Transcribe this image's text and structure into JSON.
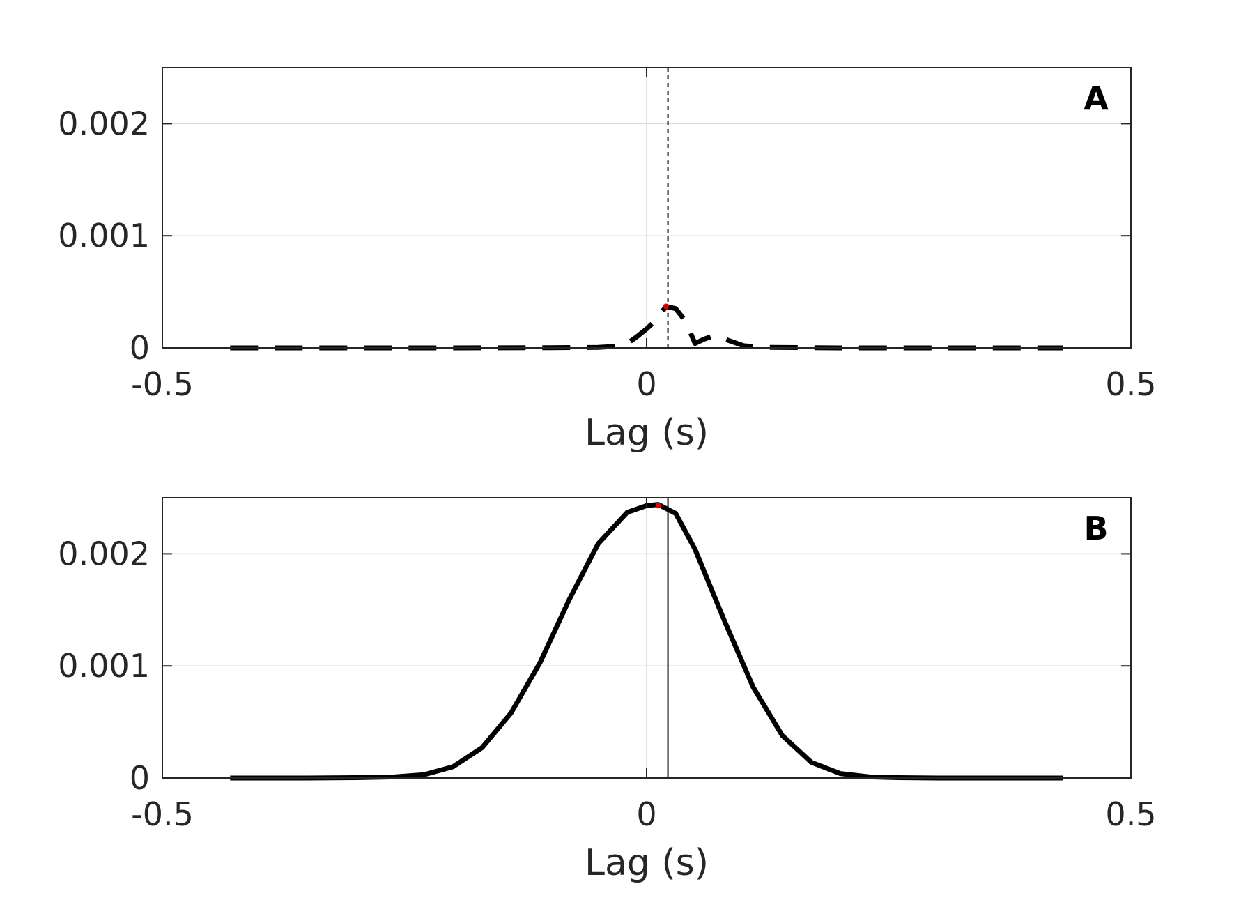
{
  "chart_data": [
    {
      "type": "line",
      "panel_label": "A",
      "xlabel": "Lag (s)",
      "ylabel": "",
      "xlim": [
        -0.5,
        0.5
      ],
      "ylim": [
        0,
        0.0025
      ],
      "x_ticks": [
        -0.5,
        0,
        0.5
      ],
      "x_tick_labels": [
        "-0.5",
        "0",
        "0.5"
      ],
      "y_ticks": [
        0,
        0.001,
        0.002
      ],
      "y_tick_labels": [
        "0",
        "0.001",
        "0.002"
      ],
      "grid": true,
      "line_style": "dashed",
      "line_color": "#000000",
      "reference_lines": [
        {
          "x": 0,
          "style": "solid",
          "color": "#d9d9d9"
        },
        {
          "x": 0.022,
          "style": "dotted",
          "color": "#000000"
        }
      ],
      "peak_marker": {
        "x": 0.02,
        "y": 0.00037,
        "color": "#e00000"
      },
      "series": [
        {
          "x": [
            -0.43,
            -0.3,
            -0.2,
            -0.1,
            -0.05,
            -0.03,
            -0.02,
            -0.01,
            0.0,
            0.01,
            0.02,
            0.03,
            0.04,
            0.05,
            0.06,
            0.07,
            0.08,
            0.1,
            0.12,
            0.2,
            0.3,
            0.43
          ],
          "values": [
            0,
            0,
            0,
            2e-06,
            5e-06,
            1.5e-05,
            4e-05,
            0.0001,
            0.00017,
            0.00025,
            0.00037,
            0.00035,
            0.00024,
            4e-05,
            8e-05,
            0.00011,
            8e-05,
            2e-05,
            5e-06,
            0,
            0,
            0
          ]
        }
      ]
    },
    {
      "type": "line",
      "panel_label": "B",
      "xlabel": "Lag (s)",
      "ylabel": "",
      "xlim": [
        -0.5,
        0.5
      ],
      "ylim": [
        0,
        0.0025
      ],
      "x_ticks": [
        -0.5,
        0,
        0.5
      ],
      "x_tick_labels": [
        "-0.5",
        "0",
        "0.5"
      ],
      "y_ticks": [
        0,
        0.001,
        0.002
      ],
      "y_tick_labels": [
        "0",
        "0.001",
        "0.002"
      ],
      "grid": true,
      "line_style": "solid",
      "line_color": "#000000",
      "reference_lines": [
        {
          "x": 0,
          "style": "solid",
          "color": "#d9d9d9"
        },
        {
          "x": 0.022,
          "style": "solid",
          "color": "#000000"
        }
      ],
      "peak_marker": {
        "x": 0.012,
        "y": 0.00243,
        "color": "#e00000"
      },
      "series": [
        {
          "x": [
            -0.43,
            -0.4,
            -0.35,
            -0.3,
            -0.26,
            -0.23,
            -0.2,
            -0.17,
            -0.14,
            -0.11,
            -0.08,
            -0.05,
            -0.02,
            0.0,
            0.012,
            0.03,
            0.05,
            0.08,
            0.11,
            0.14,
            0.17,
            0.2,
            0.23,
            0.26,
            0.3,
            0.35,
            0.4,
            0.43
          ],
          "values": [
            0,
            0,
            0,
            3e-06,
            1e-05,
            3e-05,
            0.0001,
            0.00027,
            0.00058,
            0.00103,
            0.00159,
            0.00209,
            0.00237,
            0.00243,
            0.00244,
            0.00236,
            0.00204,
            0.00141,
            0.00081,
            0.00038,
            0.00014,
            4e-05,
            1e-05,
            3e-06,
            0,
            0,
            0,
            0
          ]
        }
      ]
    }
  ]
}
